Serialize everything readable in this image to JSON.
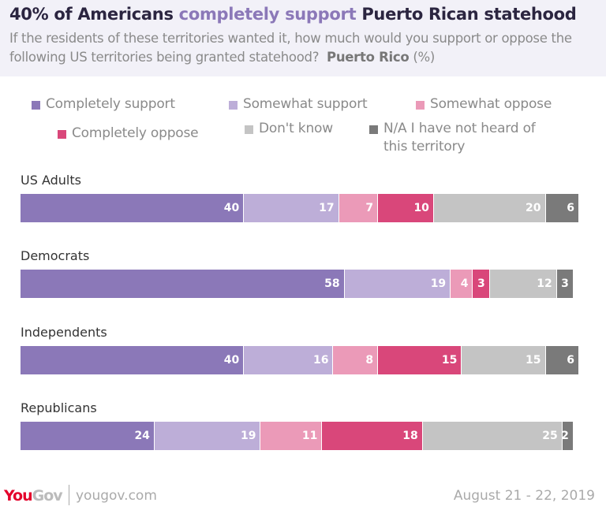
{
  "header": {
    "title_pre": "40% of Americans ",
    "title_highlight": "completely support",
    "title_post": " Puerto Rican statehood",
    "subtitle": "If the residents of these territories wanted it, how much would you support or oppose the following US territories being granted statehood?",
    "subtitle_bold": "Puerto Rico",
    "subtitle_unit": "(%)"
  },
  "chart_data": {
    "type": "bar",
    "orientation": "horizontal",
    "stacked": true,
    "categories": [
      "US Adults",
      "Democrats",
      "Independents",
      "Republicans"
    ],
    "series": [
      {
        "name": "Completely support",
        "color": "#8b78b8",
        "values": [
          40,
          58,
          40,
          24
        ]
      },
      {
        "name": "Somewhat support",
        "color": "#bdaed8",
        "values": [
          17,
          19,
          16,
          19
        ]
      },
      {
        "name": "Somewhat oppose",
        "color": "#eb9ab8",
        "values": [
          7,
          4,
          8,
          11
        ]
      },
      {
        "name": "Completely oppose",
        "color": "#d9477a",
        "values": [
          10,
          3,
          15,
          18
        ]
      },
      {
        "name": "Don't know",
        "color": "#c4c4c4",
        "values": [
          20,
          12,
          15,
          25
        ]
      },
      {
        "name": "N/A I have not heard of this territory",
        "color": "#7a7a7a",
        "values": [
          6,
          3,
          6,
          2
        ]
      }
    ],
    "legend": "top",
    "xlim": [
      0,
      100
    ]
  },
  "footer": {
    "logo": "YouGov",
    "url": "yougov.com",
    "date": "August 21 - 22, 2019"
  }
}
